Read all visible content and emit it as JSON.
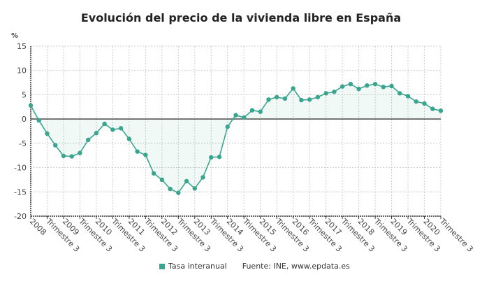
{
  "chart_data": {
    "type": "area",
    "title": "Evolución del precio de la vivienda libre en España",
    "ylabel": "%",
    "xlabel": "",
    "ylim": [
      -20,
      15
    ],
    "yticks": [
      15,
      10,
      5,
      0,
      -5,
      -10,
      -15,
      -20
    ],
    "grid": true,
    "legend_position": "bottom",
    "xtick_labels": [
      "2008",
      "Trimestre 3",
      "2009",
      "Trimestre 3",
      "2010",
      "Trimestre 3",
      "2011",
      "Trimestre 3",
      "2012",
      "Trimestre 3",
      "2013",
      "Trimestre 3",
      "2014",
      "Trimestre 3",
      "2015",
      "Trimestre 3",
      "2016",
      "Trimestre 3",
      "2017",
      "Trimestre 3",
      "2018",
      "Trimestre 3",
      "2019",
      "Trimestre 3",
      "2020",
      "Trimestre 3"
    ],
    "series": [
      {
        "name": "Tasa interanual",
        "color": "#3aa58e",
        "values": [
          2.8,
          -0.3,
          -3.0,
          -5.4,
          -7.6,
          -7.7,
          -7.0,
          -4.3,
          -2.9,
          -1.0,
          -2.2,
          -1.9,
          -4.1,
          -6.7,
          -7.4,
          -11.2,
          -12.5,
          -14.4,
          -15.2,
          -12.8,
          -14.3,
          -12.0,
          -7.9,
          -7.8,
          -1.6,
          0.8,
          0.3,
          1.8,
          1.5,
          4.0,
          4.5,
          4.2,
          6.3,
          3.9,
          4.0,
          4.5,
          5.3,
          5.6,
          6.7,
          7.2,
          6.2,
          6.9,
          7.2,
          6.6,
          6.8,
          5.3,
          4.7,
          3.6,
          3.2,
          2.1,
          1.7
        ]
      }
    ],
    "source": "Fuente: INE, www.epdata.es"
  }
}
